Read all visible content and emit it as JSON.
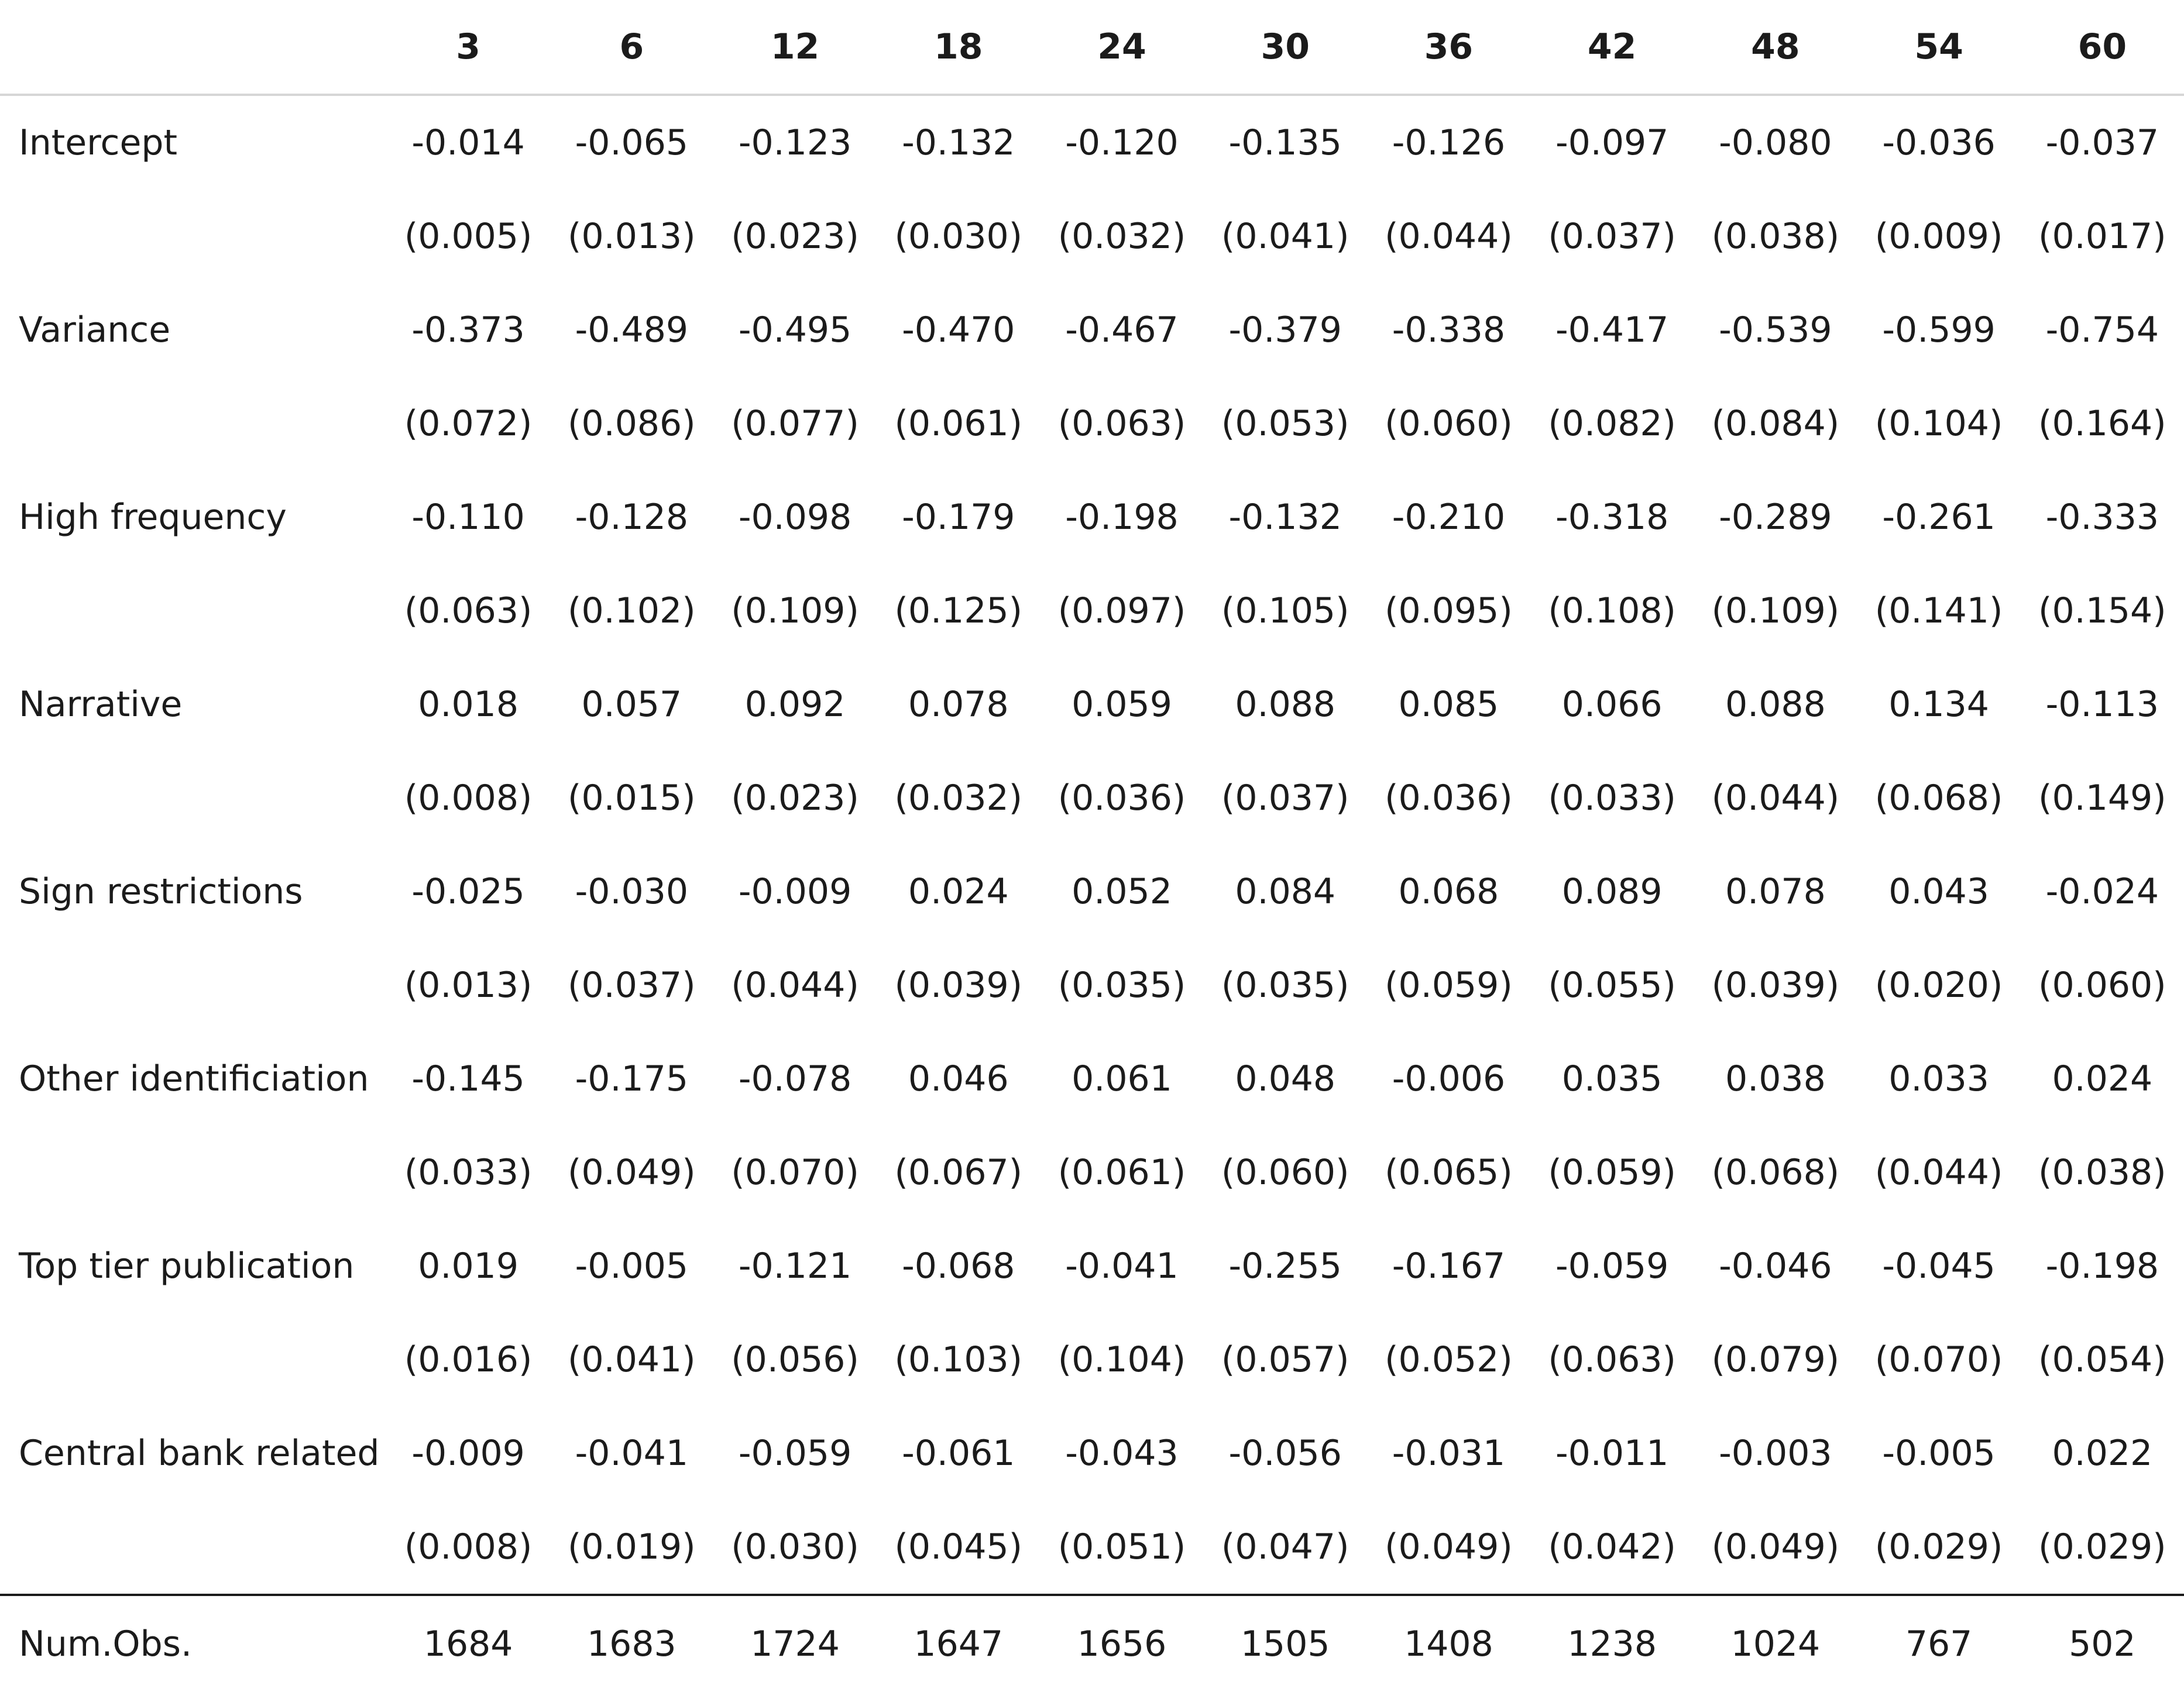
{
  "table": {
    "stub_header": "",
    "columns": [
      "3",
      "6",
      "12",
      "18",
      "24",
      "30",
      "36",
      "42",
      "48",
      "54",
      "60"
    ],
    "rows": [
      {
        "label": "Intercept",
        "estimates": [
          "-0.014",
          "-0.065",
          "-0.123",
          "-0.132",
          "-0.120",
          "-0.135",
          "-0.126",
          "-0.097",
          "-0.080",
          "-0.036",
          "-0.037"
        ],
        "std_errors": [
          "(0.005)",
          "(0.013)",
          "(0.023)",
          "(0.030)",
          "(0.032)",
          "(0.041)",
          "(0.044)",
          "(0.037)",
          "(0.038)",
          "(0.009)",
          "(0.017)"
        ]
      },
      {
        "label": "Variance",
        "estimates": [
          "-0.373",
          "-0.489",
          "-0.495",
          "-0.470",
          "-0.467",
          "-0.379",
          "-0.338",
          "-0.417",
          "-0.539",
          "-0.599",
          "-0.754"
        ],
        "std_errors": [
          "(0.072)",
          "(0.086)",
          "(0.077)",
          "(0.061)",
          "(0.063)",
          "(0.053)",
          "(0.060)",
          "(0.082)",
          "(0.084)",
          "(0.104)",
          "(0.164)"
        ]
      },
      {
        "label": "High frequency",
        "estimates": [
          "-0.110",
          "-0.128",
          "-0.098",
          "-0.179",
          "-0.198",
          "-0.132",
          "-0.210",
          "-0.318",
          "-0.289",
          "-0.261",
          "-0.333"
        ],
        "std_errors": [
          "(0.063)",
          "(0.102)",
          "(0.109)",
          "(0.125)",
          "(0.097)",
          "(0.105)",
          "(0.095)",
          "(0.108)",
          "(0.109)",
          "(0.141)",
          "(0.154)"
        ]
      },
      {
        "label": "Narrative",
        "estimates": [
          "0.018",
          "0.057",
          "0.092",
          "0.078",
          "0.059",
          "0.088",
          "0.085",
          "0.066",
          "0.088",
          "0.134",
          "-0.113"
        ],
        "std_errors": [
          "(0.008)",
          "(0.015)",
          "(0.023)",
          "(0.032)",
          "(0.036)",
          "(0.037)",
          "(0.036)",
          "(0.033)",
          "(0.044)",
          "(0.068)",
          "(0.149)"
        ]
      },
      {
        "label": "Sign restrictions",
        "estimates": [
          "-0.025",
          "-0.030",
          "-0.009",
          "0.024",
          "0.052",
          "0.084",
          "0.068",
          "0.089",
          "0.078",
          "0.043",
          "-0.024"
        ],
        "std_errors": [
          "(0.013)",
          "(0.037)",
          "(0.044)",
          "(0.039)",
          "(0.035)",
          "(0.035)",
          "(0.059)",
          "(0.055)",
          "(0.039)",
          "(0.020)",
          "(0.060)"
        ]
      },
      {
        "label": "Other identificiation",
        "estimates": [
          "-0.145",
          "-0.175",
          "-0.078",
          "0.046",
          "0.061",
          "0.048",
          "-0.006",
          "0.035",
          "0.038",
          "0.033",
          "0.024"
        ],
        "std_errors": [
          "(0.033)",
          "(0.049)",
          "(0.070)",
          "(0.067)",
          "(0.061)",
          "(0.060)",
          "(0.065)",
          "(0.059)",
          "(0.068)",
          "(0.044)",
          "(0.038)"
        ]
      },
      {
        "label": "Top tier publication",
        "estimates": [
          "0.019",
          "-0.005",
          "-0.121",
          "-0.068",
          "-0.041",
          "-0.255",
          "-0.167",
          "-0.059",
          "-0.046",
          "-0.045",
          "-0.198"
        ],
        "std_errors": [
          "(0.016)",
          "(0.041)",
          "(0.056)",
          "(0.103)",
          "(0.104)",
          "(0.057)",
          "(0.052)",
          "(0.063)",
          "(0.079)",
          "(0.070)",
          "(0.054)"
        ]
      },
      {
        "label": "Central bank related",
        "estimates": [
          "-0.009",
          "-0.041",
          "-0.059",
          "-0.061",
          "-0.043",
          "-0.056",
          "-0.031",
          "-0.011",
          "-0.003",
          "-0.005",
          "0.022"
        ],
        "std_errors": [
          "(0.008)",
          "(0.019)",
          "(0.030)",
          "(0.045)",
          "(0.051)",
          "(0.047)",
          "(0.049)",
          "(0.042)",
          "(0.049)",
          "(0.029)",
          "(0.029)"
        ]
      }
    ],
    "footer": {
      "label": "Num.Obs.",
      "values": [
        "1684",
        "1683",
        "1724",
        "1647",
        "1656",
        "1505",
        "1408",
        "1238",
        "1024",
        "767",
        "502"
      ]
    },
    "colors": {
      "text": "#1b1b1b",
      "header_rule": "#d6d6d6",
      "footer_rule": "#1b1b1b",
      "background": "#ffffff"
    }
  }
}
